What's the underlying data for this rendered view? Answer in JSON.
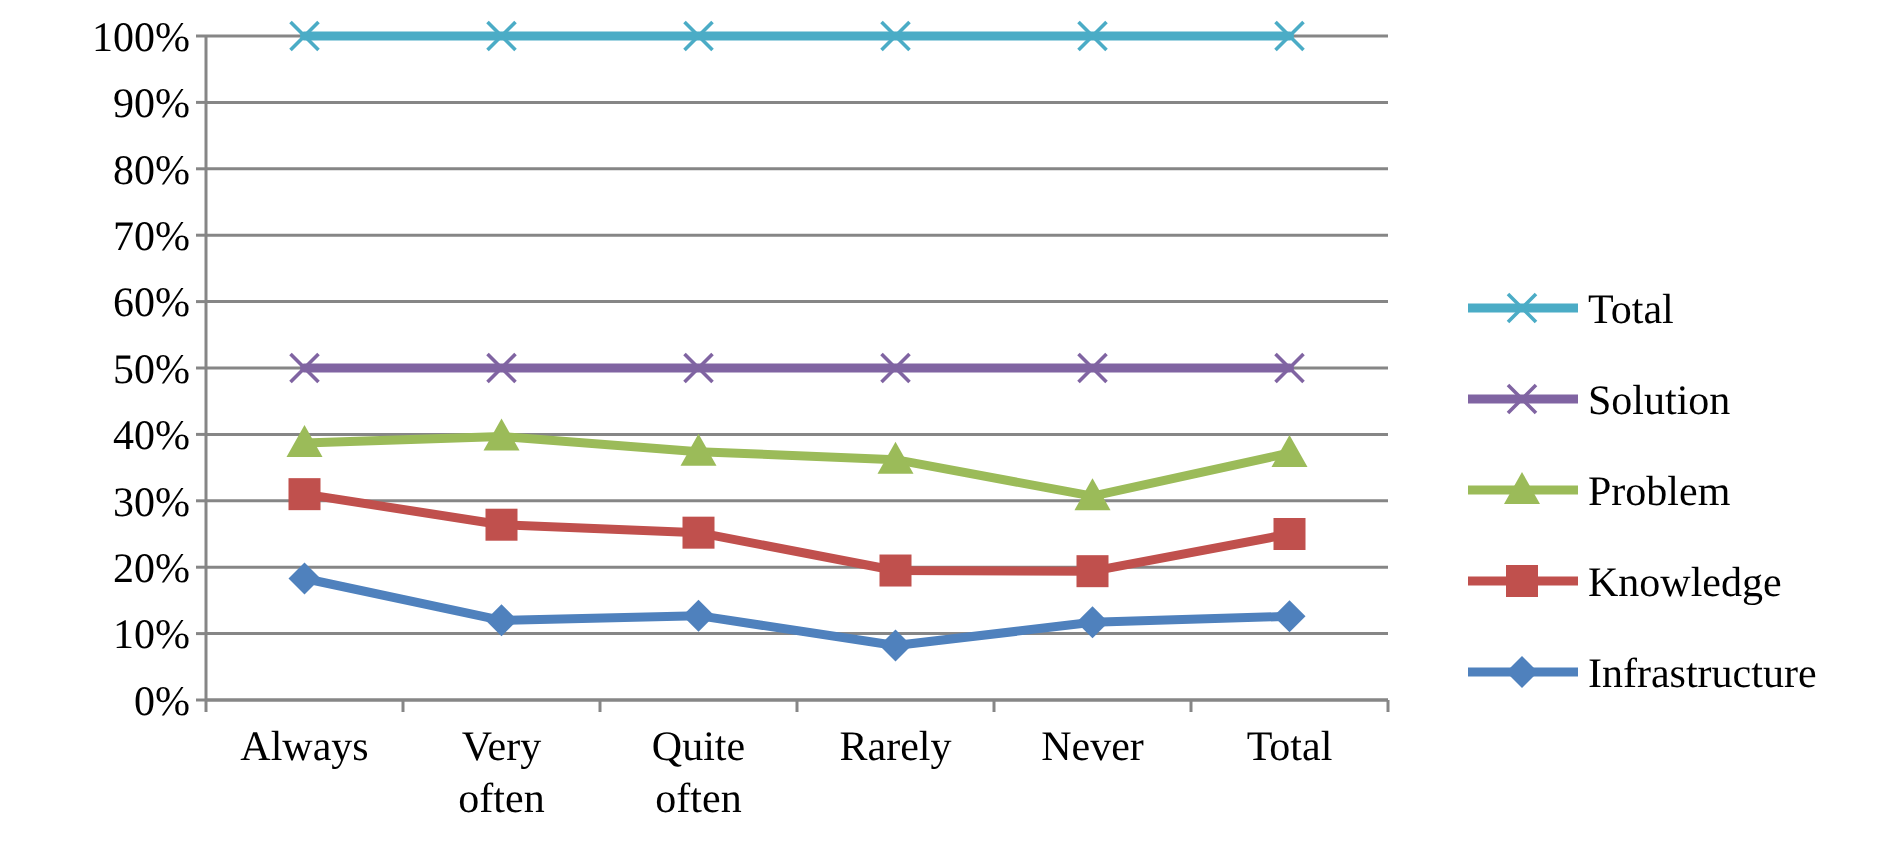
{
  "chart_data": {
    "type": "line",
    "categories": [
      "Always",
      "Very often",
      "Quite often",
      "Rarely",
      "Never",
      "Total"
    ],
    "series": [
      {
        "name": "Total",
        "color": "#4bacc6",
        "marker": "cross",
        "values": [
          100,
          100,
          100,
          100,
          100,
          100
        ]
      },
      {
        "name": "Solution",
        "color": "#8064a2",
        "marker": "cross",
        "values": [
          50,
          50,
          50,
          50,
          50,
          50
        ]
      },
      {
        "name": "Problem",
        "color": "#9bbb59",
        "marker": "triangle",
        "values": [
          38.7,
          39.7,
          37.4,
          36.2,
          30.7,
          37.2
        ]
      },
      {
        "name": "Knowledge",
        "color": "#c0504d",
        "marker": "square",
        "values": [
          31.0,
          26.4,
          25.2,
          19.5,
          19.4,
          25.0
        ]
      },
      {
        "name": "Infrastructure",
        "color": "#4f81bd",
        "marker": "diamond",
        "values": [
          18.3,
          12.0,
          12.7,
          8.2,
          11.7,
          12.6
        ]
      }
    ],
    "ylim": [
      0,
      100
    ],
    "yticks": [
      {
        "value": 0,
        "label": "0%"
      },
      {
        "value": 10,
        "label": "10%"
      },
      {
        "value": 20,
        "label": "20%"
      },
      {
        "value": 30,
        "label": "30%"
      },
      {
        "value": 40,
        "label": "40%"
      },
      {
        "value": 50,
        "label": "50%"
      },
      {
        "value": 60,
        "label": "60%"
      },
      {
        "value": 70,
        "label": "70%"
      },
      {
        "value": 80,
        "label": "80%"
      },
      {
        "value": 90,
        "label": "90%"
      },
      {
        "value": 100,
        "label": "100%"
      }
    ],
    "grid": "y",
    "legend": "right",
    "line_style": "solid"
  }
}
